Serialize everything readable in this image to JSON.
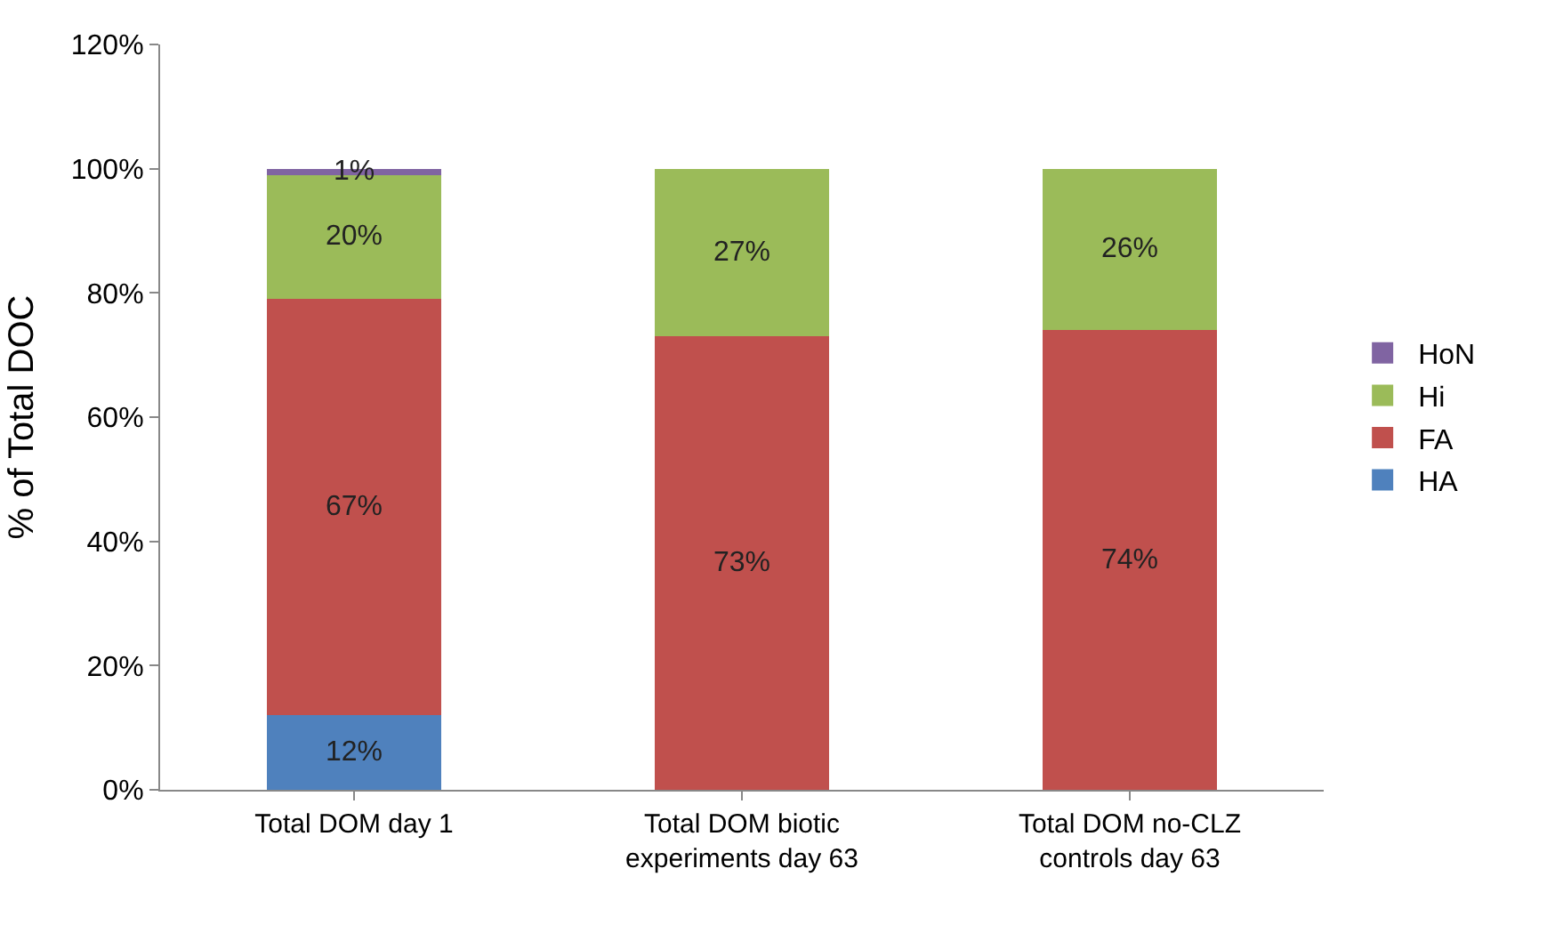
{
  "chart_data": {
    "type": "bar",
    "stacked": true,
    "ylabel": "% of Total DOC",
    "categories": [
      "Total DOM day 1",
      "Total DOM biotic\nexperiments day 63",
      "Total DOM no-CLZ\ncontrols day 63"
    ],
    "series": [
      {
        "name": "HA",
        "color": "#4f81bd",
        "values": [
          12,
          0,
          0
        ],
        "value_labels": [
          "12%",
          null,
          null
        ]
      },
      {
        "name": "FA",
        "color": "#c0504d",
        "values": [
          67,
          73,
          74
        ],
        "value_labels": [
          "67%",
          "73%",
          "74%"
        ]
      },
      {
        "name": "Hi",
        "color": "#9bbb59",
        "values": [
          20,
          27,
          26
        ],
        "value_labels": [
          "20%",
          "27%",
          "26%"
        ]
      },
      {
        "name": "HoN",
        "color": "#8064a2",
        "values": [
          1,
          0,
          0
        ],
        "value_labels": [
          "1%",
          null,
          null
        ]
      }
    ],
    "ylim": [
      0,
      120
    ],
    "yticks": [
      {
        "value": 0,
        "label": "0%"
      },
      {
        "value": 20,
        "label": "20%"
      },
      {
        "value": 40,
        "label": "40%"
      },
      {
        "value": 60,
        "label": "60%"
      },
      {
        "value": 80,
        "label": "80%"
      },
      {
        "value": 100,
        "label": "100%"
      },
      {
        "value": 120,
        "label": "120%"
      }
    ],
    "grid": false,
    "legend": "right"
  }
}
